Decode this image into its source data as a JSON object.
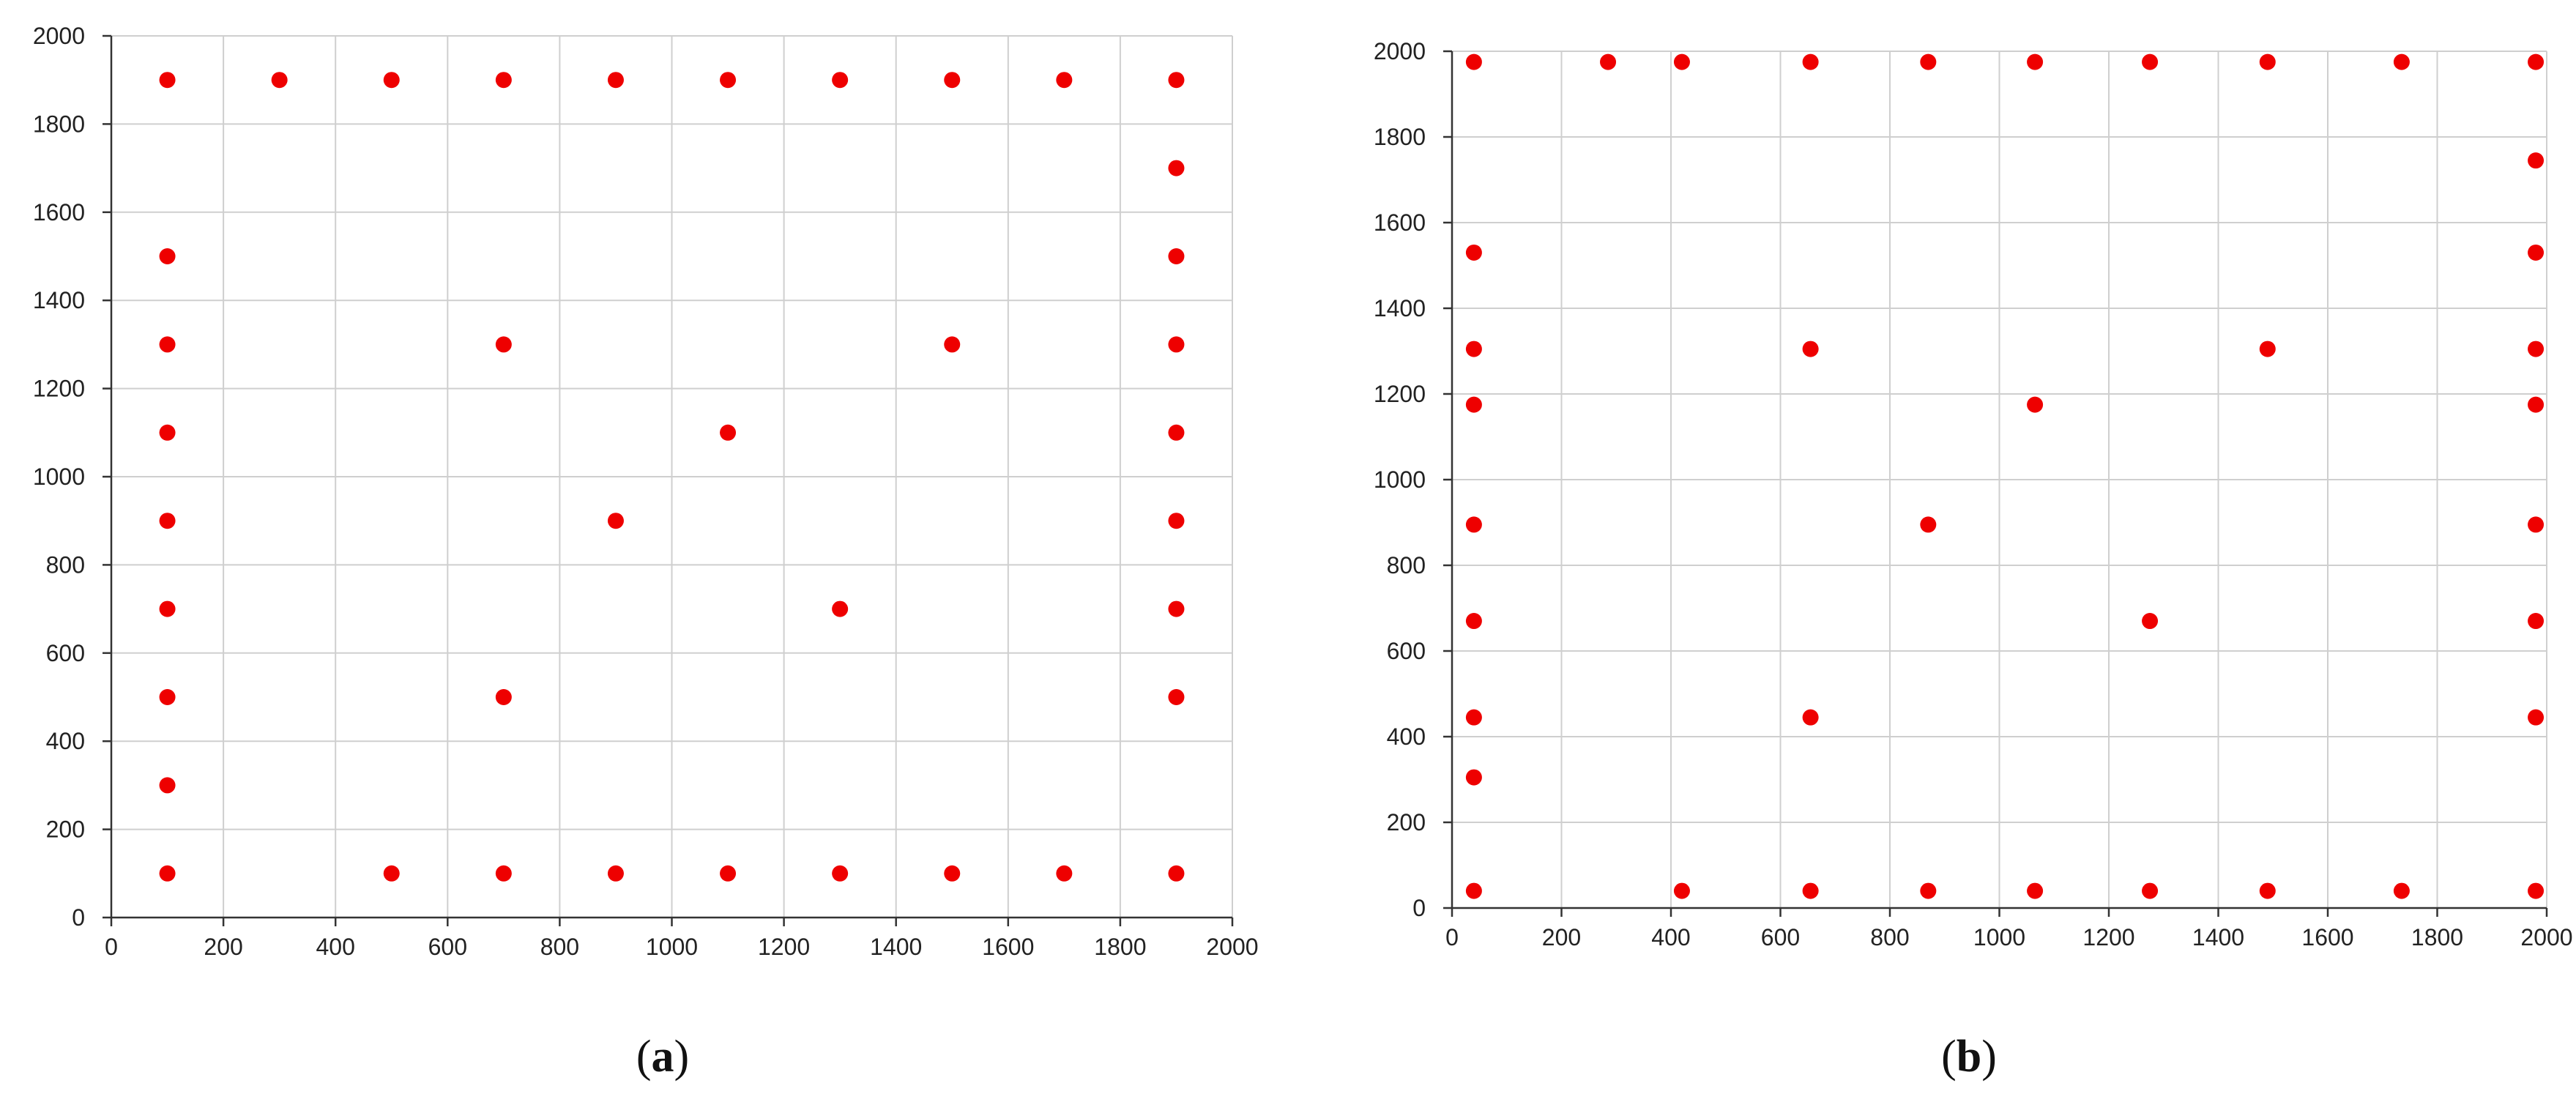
{
  "colors": {
    "point": "#ee0000",
    "grid": "#cfcfcf",
    "axis": "#333333"
  },
  "chart_data": [
    {
      "type": "scatter",
      "panel_label": "a",
      "xlim": [
        0,
        2000
      ],
      "ylim": [
        0,
        2000
      ],
      "xticks": [
        0,
        200,
        400,
        600,
        800,
        1000,
        1200,
        1400,
        1600,
        1800,
        2000
      ],
      "yticks": [
        0,
        200,
        400,
        600,
        800,
        1000,
        1200,
        1400,
        1600,
        1800,
        2000
      ],
      "grid": true,
      "points": [
        {
          "x": 100,
          "y": 1900
        },
        {
          "x": 300,
          "y": 1900
        },
        {
          "x": 500,
          "y": 1900
        },
        {
          "x": 700,
          "y": 1900
        },
        {
          "x": 900,
          "y": 1900
        },
        {
          "x": 1100,
          "y": 1900
        },
        {
          "x": 1300,
          "y": 1900
        },
        {
          "x": 1500,
          "y": 1900
        },
        {
          "x": 1700,
          "y": 1900
        },
        {
          "x": 1900,
          "y": 1900
        },
        {
          "x": 1900,
          "y": 1700
        },
        {
          "x": 100,
          "y": 1500
        },
        {
          "x": 1900,
          "y": 1500
        },
        {
          "x": 100,
          "y": 1300
        },
        {
          "x": 700,
          "y": 1300
        },
        {
          "x": 1500,
          "y": 1300
        },
        {
          "x": 1900,
          "y": 1300
        },
        {
          "x": 100,
          "y": 1100
        },
        {
          "x": 1100,
          "y": 1100
        },
        {
          "x": 1900,
          "y": 1100
        },
        {
          "x": 100,
          "y": 900
        },
        {
          "x": 900,
          "y": 900
        },
        {
          "x": 1900,
          "y": 900
        },
        {
          "x": 100,
          "y": 700
        },
        {
          "x": 1300,
          "y": 700
        },
        {
          "x": 1900,
          "y": 700
        },
        {
          "x": 100,
          "y": 500
        },
        {
          "x": 700,
          "y": 500
        },
        {
          "x": 1900,
          "y": 500
        },
        {
          "x": 100,
          "y": 300
        },
        {
          "x": 100,
          "y": 100
        },
        {
          "x": 500,
          "y": 100
        },
        {
          "x": 700,
          "y": 100
        },
        {
          "x": 900,
          "y": 100
        },
        {
          "x": 1100,
          "y": 100
        },
        {
          "x": 1300,
          "y": 100
        },
        {
          "x": 1500,
          "y": 100
        },
        {
          "x": 1700,
          "y": 100
        },
        {
          "x": 1900,
          "y": 100
        }
      ]
    },
    {
      "type": "scatter",
      "panel_label": "b",
      "xlim": [
        0,
        2000
      ],
      "ylim": [
        0,
        2000
      ],
      "xticks": [
        0,
        200,
        400,
        600,
        800,
        1000,
        1200,
        1400,
        1600,
        1800,
        2000
      ],
      "yticks": [
        0,
        200,
        400,
        600,
        800,
        1000,
        1200,
        1400,
        1600,
        1800,
        2000
      ],
      "grid": true,
      "points": [
        {
          "x": 40,
          "y": 1975
        },
        {
          "x": 285,
          "y": 1975
        },
        {
          "x": 420,
          "y": 1975
        },
        {
          "x": 655,
          "y": 1975
        },
        {
          "x": 870,
          "y": 1975
        },
        {
          "x": 1065,
          "y": 1975
        },
        {
          "x": 1275,
          "y": 1975
        },
        {
          "x": 1490,
          "y": 1975
        },
        {
          "x": 1735,
          "y": 1975
        },
        {
          "x": 1980,
          "y": 1975
        },
        {
          "x": 1980,
          "y": 1745
        },
        {
          "x": 40,
          "y": 1530
        },
        {
          "x": 1980,
          "y": 1530
        },
        {
          "x": 40,
          "y": 1305
        },
        {
          "x": 655,
          "y": 1305
        },
        {
          "x": 1490,
          "y": 1305
        },
        {
          "x": 1980,
          "y": 1305
        },
        {
          "x": 40,
          "y": 1175
        },
        {
          "x": 1065,
          "y": 1175
        },
        {
          "x": 1980,
          "y": 1175
        },
        {
          "x": 40,
          "y": 895
        },
        {
          "x": 870,
          "y": 895
        },
        {
          "x": 1980,
          "y": 895
        },
        {
          "x": 40,
          "y": 670
        },
        {
          "x": 1275,
          "y": 670
        },
        {
          "x": 1980,
          "y": 670
        },
        {
          "x": 40,
          "y": 445
        },
        {
          "x": 655,
          "y": 445
        },
        {
          "x": 1980,
          "y": 445
        },
        {
          "x": 40,
          "y": 305
        },
        {
          "x": 40,
          "y": 40
        },
        {
          "x": 420,
          "y": 40
        },
        {
          "x": 655,
          "y": 40
        },
        {
          "x": 870,
          "y": 40
        },
        {
          "x": 1065,
          "y": 40
        },
        {
          "x": 1275,
          "y": 40
        },
        {
          "x": 1490,
          "y": 40
        },
        {
          "x": 1735,
          "y": 40
        },
        {
          "x": 1980,
          "y": 40
        }
      ]
    }
  ]
}
